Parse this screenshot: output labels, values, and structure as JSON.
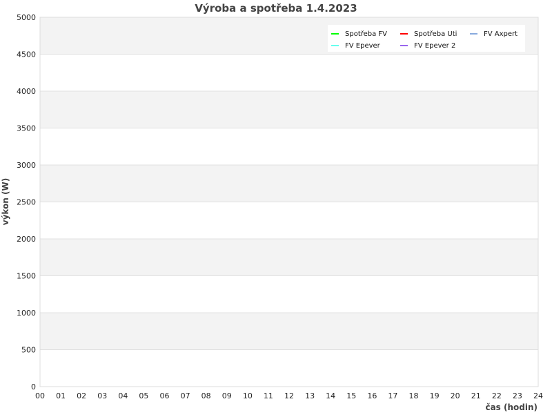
{
  "chart_data": {
    "type": "line",
    "title": "Výroba a spotřeba 1.4.2023",
    "xlabel": "čas (hodin)",
    "ylabel": "výkon (W)",
    "xlim": [
      0,
      24
    ],
    "ylim": [
      0,
      5000
    ],
    "x_ticks": [
      "00",
      "01",
      "02",
      "03",
      "04",
      "05",
      "06",
      "07",
      "08",
      "09",
      "10",
      "11",
      "12",
      "13",
      "14",
      "15",
      "16",
      "17",
      "18",
      "19",
      "20",
      "21",
      "22",
      "23",
      "24"
    ],
    "y_ticks": [
      0,
      500,
      1000,
      1500,
      2000,
      2500,
      3000,
      3500,
      4000,
      4500,
      5000
    ],
    "grid": true,
    "alternating_bands": {
      "colors": [
        "#ffffff",
        "#f3f3f3"
      ]
    },
    "legend_position": "top-right",
    "series": [
      {
        "name": "Spotřeba FV",
        "color": "#00ff00",
        "values": []
      },
      {
        "name": "Spotřeba Uti",
        "color": "#ff0000",
        "values": []
      },
      {
        "name": "FV Axpert",
        "color": "#88aadd",
        "values": []
      },
      {
        "name": "FV Epever",
        "color": "#66ffee",
        "values": []
      },
      {
        "name": "FV Epever 2",
        "color": "#9966ee",
        "values": []
      }
    ]
  }
}
